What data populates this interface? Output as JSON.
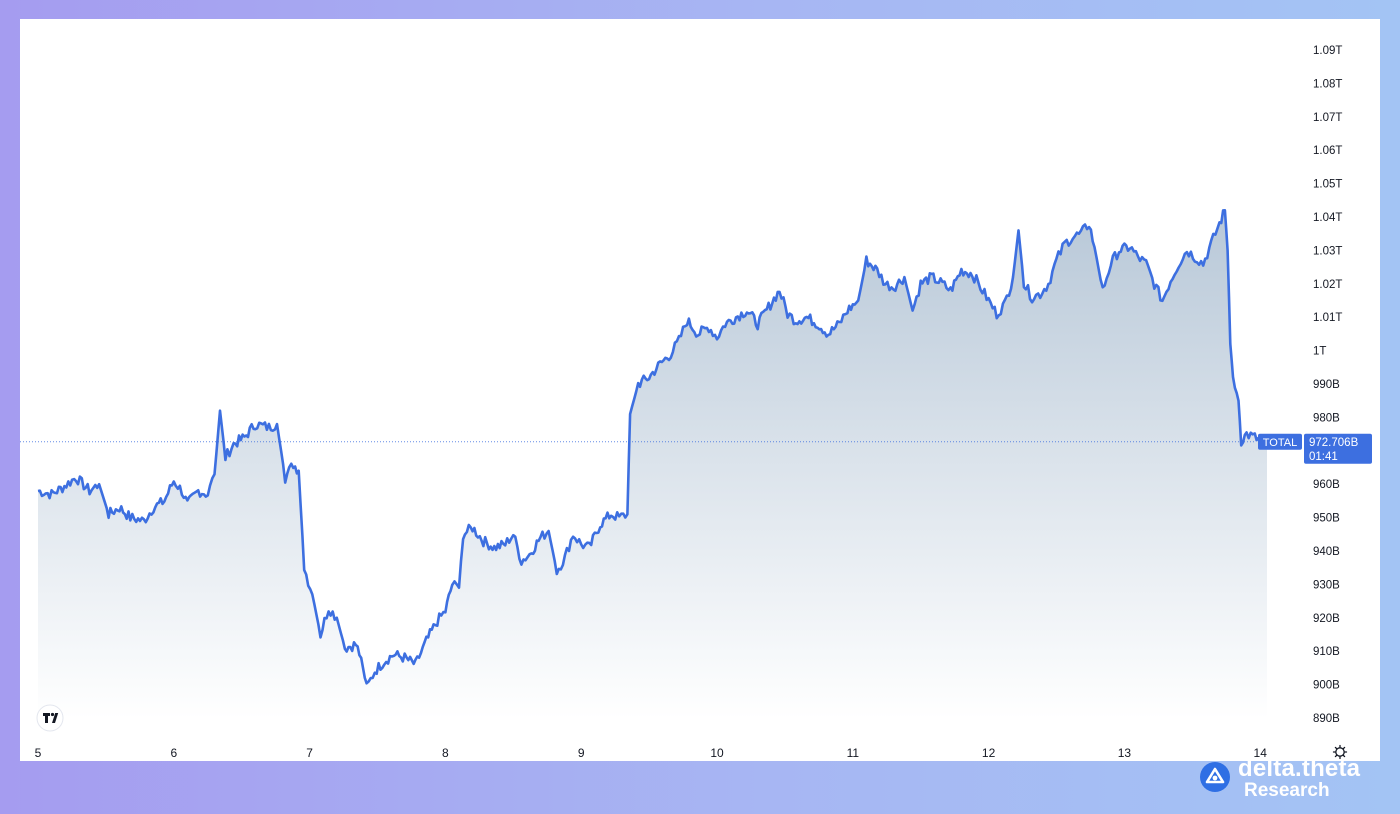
{
  "chart_data": {
    "type": "area",
    "title": "",
    "xlabel": "",
    "ylabel": "",
    "x_ticks": [
      5,
      6,
      7,
      8,
      9,
      10,
      11,
      12,
      13,
      14
    ],
    "xlim": [
      5,
      14
    ],
    "ylim": [
      884,
      1096
    ],
    "y_ticks": [
      {
        "v": 890,
        "label": "890B"
      },
      {
        "v": 900,
        "label": "900B"
      },
      {
        "v": 910,
        "label": "910B"
      },
      {
        "v": 920,
        "label": "920B"
      },
      {
        "v": 930,
        "label": "930B"
      },
      {
        "v": 940,
        "label": "940B"
      },
      {
        "v": 950,
        "label": "950B"
      },
      {
        "v": 960,
        "label": "960B"
      },
      {
        "v": 970,
        "label": "970B"
      },
      {
        "v": 980,
        "label": "980B"
      },
      {
        "v": 990,
        "label": "990B"
      },
      {
        "v": 1000,
        "label": "1T"
      },
      {
        "v": 1010,
        "label": "1.01T"
      },
      {
        "v": 1020,
        "label": "1.02T"
      },
      {
        "v": 1030,
        "label": "1.03T"
      },
      {
        "v": 1040,
        "label": "1.04T"
      },
      {
        "v": 1050,
        "label": "1.05T"
      },
      {
        "v": 1060,
        "label": "1.06T"
      },
      {
        "v": 1070,
        "label": "1.07T"
      },
      {
        "v": 1080,
        "label": "1.08T"
      },
      {
        "v": 1090,
        "label": "1.09T"
      }
    ],
    "series": [
      {
        "name": "TOTAL",
        "color": "#3d6fe0",
        "points": [
          [
            5.0,
            958
          ],
          [
            5.1,
            957
          ],
          [
            5.18,
            959
          ],
          [
            5.28,
            962
          ],
          [
            5.38,
            958
          ],
          [
            5.45,
            960
          ],
          [
            5.52,
            951
          ],
          [
            5.6,
            953
          ],
          [
            5.68,
            950
          ],
          [
            5.78,
            949
          ],
          [
            5.85,
            953
          ],
          [
            5.93,
            955
          ],
          [
            6.0,
            961
          ],
          [
            6.06,
            958
          ],
          [
            6.1,
            954
          ],
          [
            6.18,
            958
          ],
          [
            6.25,
            957
          ],
          [
            6.3,
            963
          ],
          [
            6.34,
            982
          ],
          [
            6.38,
            968
          ],
          [
            6.44,
            972
          ],
          [
            6.52,
            974
          ],
          [
            6.6,
            978
          ],
          [
            6.7,
            977
          ],
          [
            6.76,
            978
          ],
          [
            6.82,
            962
          ],
          [
            6.88,
            966
          ],
          [
            6.92,
            964
          ],
          [
            6.96,
            935
          ],
          [
            7.02,
            927
          ],
          [
            7.08,
            915
          ],
          [
            7.14,
            923
          ],
          [
            7.2,
            920
          ],
          [
            7.26,
            911
          ],
          [
            7.34,
            912
          ],
          [
            7.38,
            908
          ],
          [
            7.42,
            899
          ],
          [
            7.48,
            904
          ],
          [
            7.55,
            907
          ],
          [
            7.62,
            909
          ],
          [
            7.7,
            908
          ],
          [
            7.78,
            906
          ],
          [
            7.86,
            913
          ],
          [
            7.94,
            919
          ],
          [
            8.0,
            922
          ],
          [
            8.05,
            930
          ],
          [
            8.1,
            929
          ],
          [
            8.13,
            945
          ],
          [
            8.2,
            947
          ],
          [
            8.28,
            943
          ],
          [
            8.36,
            941
          ],
          [
            8.44,
            942
          ],
          [
            8.5,
            945
          ],
          [
            8.56,
            937
          ],
          [
            8.62,
            939
          ],
          [
            8.7,
            944
          ],
          [
            8.76,
            946
          ],
          [
            8.82,
            934
          ],
          [
            8.88,
            938
          ],
          [
            8.94,
            945
          ],
          [
            9.0,
            942
          ],
          [
            9.06,
            941
          ],
          [
            9.14,
            948
          ],
          [
            9.22,
            951
          ],
          [
            9.28,
            950
          ],
          [
            9.34,
            951
          ],
          [
            9.36,
            981
          ],
          [
            9.42,
            990
          ],
          [
            9.5,
            992
          ],
          [
            9.58,
            996
          ],
          [
            9.66,
            999
          ],
          [
            9.72,
            1003
          ],
          [
            9.78,
            1009
          ],
          [
            9.86,
            1005
          ],
          [
            9.94,
            1007
          ],
          [
            10.0,
            1004
          ],
          [
            10.06,
            1008
          ],
          [
            10.14,
            1010
          ],
          [
            10.22,
            1012
          ],
          [
            10.3,
            1008
          ],
          [
            10.38,
            1013
          ],
          [
            10.46,
            1018
          ],
          [
            10.52,
            1011
          ],
          [
            10.58,
            1009
          ],
          [
            10.66,
            1010
          ],
          [
            10.74,
            1008
          ],
          [
            10.82,
            1005
          ],
          [
            10.9,
            1008
          ],
          [
            10.96,
            1012
          ],
          [
            11.04,
            1015
          ],
          [
            11.1,
            1027
          ],
          [
            11.18,
            1024
          ],
          [
            11.24,
            1020
          ],
          [
            11.3,
            1019
          ],
          [
            11.38,
            1022
          ],
          [
            11.44,
            1012
          ],
          [
            11.5,
            1020
          ],
          [
            11.58,
            1022
          ],
          [
            11.66,
            1020
          ],
          [
            11.72,
            1018
          ],
          [
            11.8,
            1024
          ],
          [
            11.88,
            1023
          ],
          [
            11.94,
            1019
          ],
          [
            12.0,
            1015
          ],
          [
            12.06,
            1011
          ],
          [
            12.12,
            1014
          ],
          [
            12.18,
            1022
          ],
          [
            12.22,
            1036
          ],
          [
            12.26,
            1020
          ],
          [
            12.32,
            1016
          ],
          [
            12.38,
            1017
          ],
          [
            12.44,
            1020
          ],
          [
            12.5,
            1027
          ],
          [
            12.56,
            1032
          ],
          [
            12.62,
            1034
          ],
          [
            12.68,
            1035
          ],
          [
            12.74,
            1038
          ],
          [
            12.78,
            1031
          ],
          [
            12.84,
            1018
          ],
          [
            12.9,
            1026
          ],
          [
            12.96,
            1030
          ],
          [
            13.04,
            1031
          ],
          [
            13.1,
            1028
          ],
          [
            13.16,
            1026
          ],
          [
            13.22,
            1020
          ],
          [
            13.28,
            1015
          ],
          [
            13.34,
            1021
          ],
          [
            13.4,
            1026
          ],
          [
            13.46,
            1030
          ],
          [
            13.52,
            1028
          ],
          [
            13.58,
            1026
          ],
          [
            13.64,
            1032
          ],
          [
            13.7,
            1038
          ],
          [
            13.74,
            1042
          ],
          [
            13.76,
            1030
          ],
          [
            13.78,
            1002
          ],
          [
            13.8,
            992
          ],
          [
            13.84,
            985
          ],
          [
            13.86,
            973
          ],
          [
            13.9,
            975
          ],
          [
            13.96,
            974
          ],
          [
            14.0,
            973
          ],
          [
            14.05,
            973
          ]
        ]
      }
    ],
    "last_value": 972.706,
    "last_label": {
      "series": "TOTAL",
      "value": "972.706B",
      "countdown": "01:41"
    },
    "colors": {
      "line": "#3d6fe0",
      "fill_top": "#b8c8d8",
      "fill_bottom": "#ffffff",
      "label_bg": "#3d6fe0",
      "background": "#ffffff",
      "grid": "none"
    },
    "grid": false,
    "legend": "none"
  },
  "brand": {
    "name": "delta.theta",
    "sub": "Research",
    "icon": "delta-theta-logo-icon"
  },
  "watermark_icon": "tradingview-logo-icon",
  "settings_icon": "gear-icon"
}
